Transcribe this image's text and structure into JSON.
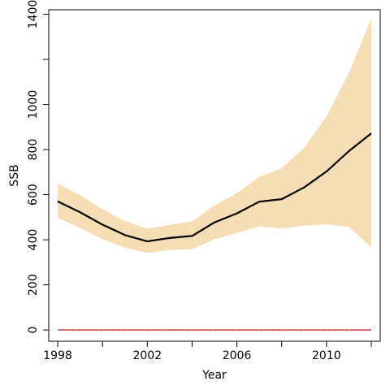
{
  "chart_data": {
    "type": "line",
    "title": "",
    "xlabel": "Year",
    "ylabel": "SSB",
    "xlim": [
      1997.6,
      2012.4
    ],
    "ylim": [
      -50,
      1420
    ],
    "x_ticks": [
      1998,
      2000,
      2002,
      2004,
      2006,
      2008,
      2010,
      2012
    ],
    "x_tick_labels": [
      "1998",
      "",
      "2002",
      "",
      "2006",
      "",
      "2010",
      ""
    ],
    "y_ticks": [
      0,
      200,
      400,
      600,
      800,
      1000,
      1200,
      1400
    ],
    "y_tick_labels": [
      "0",
      "200",
      "400",
      "600",
      "800",
      "1000",
      "",
      "1400"
    ],
    "x": [
      1998,
      1999,
      2000,
      2001,
      2002,
      2003,
      2004,
      2005,
      2006,
      2007,
      2008,
      2009,
      2010,
      2011,
      2012
    ],
    "series": [
      {
        "role": "estimate",
        "color": "#000000",
        "values": [
          570,
          522,
          467,
          421,
          393,
          408,
          417,
          477,
          517,
          569,
          580,
          632,
          703,
          793,
          872
        ]
      },
      {
        "role": "reference",
        "color": "#e31a1c",
        "values": [
          0,
          0,
          0,
          0,
          0,
          0,
          0,
          0,
          0,
          0,
          0,
          0,
          0,
          0,
          0
        ]
      }
    ],
    "band": {
      "color": "#f5deb3",
      "upper": [
        648,
        598,
        535,
        483,
        449,
        466,
        482,
        553,
        606,
        679,
        717,
        808,
        946,
        1140,
        1380
      ],
      "lower": [
        497,
        453,
        403,
        365,
        342,
        355,
        358,
        402,
        430,
        459,
        450,
        462,
        469,
        457,
        366
      ]
    },
    "grid": false,
    "legend": "none"
  }
}
